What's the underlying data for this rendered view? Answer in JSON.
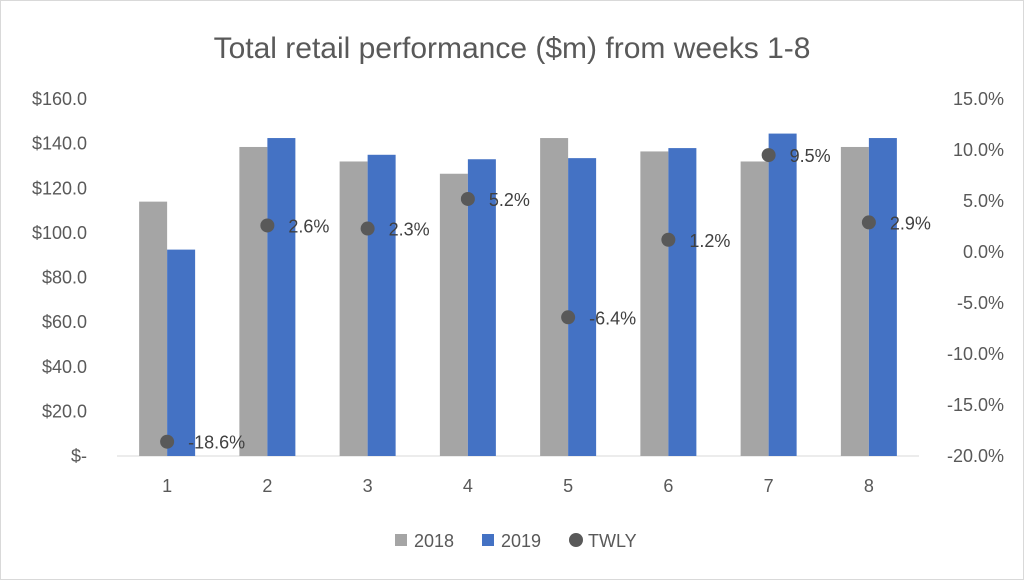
{
  "chart_data": {
    "type": "bar",
    "title": "Total retail performance ($m) from weeks 1-8",
    "categories": [
      "1",
      "2",
      "3",
      "4",
      "5",
      "6",
      "7",
      "8"
    ],
    "series": [
      {
        "name": "2018",
        "type": "bar",
        "axis": "left",
        "color": "#a5a5a5",
        "values": [
          114.0,
          138.5,
          132.0,
          126.5,
          142.5,
          136.5,
          132.0,
          138.5
        ]
      },
      {
        "name": "2019",
        "type": "bar",
        "axis": "left",
        "color": "#4472c4",
        "values": [
          92.5,
          142.5,
          135.0,
          133.0,
          133.5,
          138.0,
          144.5,
          142.5
        ]
      },
      {
        "name": "TWLY",
        "type": "scatter",
        "axis": "right",
        "color": "#595959",
        "values": [
          -18.6,
          2.6,
          2.3,
          5.2,
          -6.4,
          1.2,
          9.5,
          2.9
        ],
        "labels": [
          "-18.6%",
          "2.6%",
          "2.3%",
          "5.2%",
          "-6.4%",
          "1.2%",
          "9.5%",
          "2.9%"
        ]
      }
    ],
    "y_left": {
      "range": [
        0,
        160
      ],
      "ticks": [
        0,
        20,
        40,
        60,
        80,
        100,
        120,
        140,
        160
      ],
      "tick_labels": [
        "$-",
        "$20.0",
        "$40.0",
        "$60.0",
        "$80.0",
        "$100.0",
        "$120.0",
        "$140.0",
        "$160.0"
      ]
    },
    "y_right": {
      "range": [
        -20,
        15
      ],
      "ticks": [
        -20,
        -15,
        -10,
        -5,
        0,
        5,
        10,
        15
      ],
      "tick_labels": [
        "-20.0%",
        "-15.0%",
        "-10.0%",
        "-5.0%",
        "0.0%",
        "5.0%",
        "10.0%",
        "15.0%"
      ]
    },
    "grid": false,
    "legend": "bottom"
  }
}
